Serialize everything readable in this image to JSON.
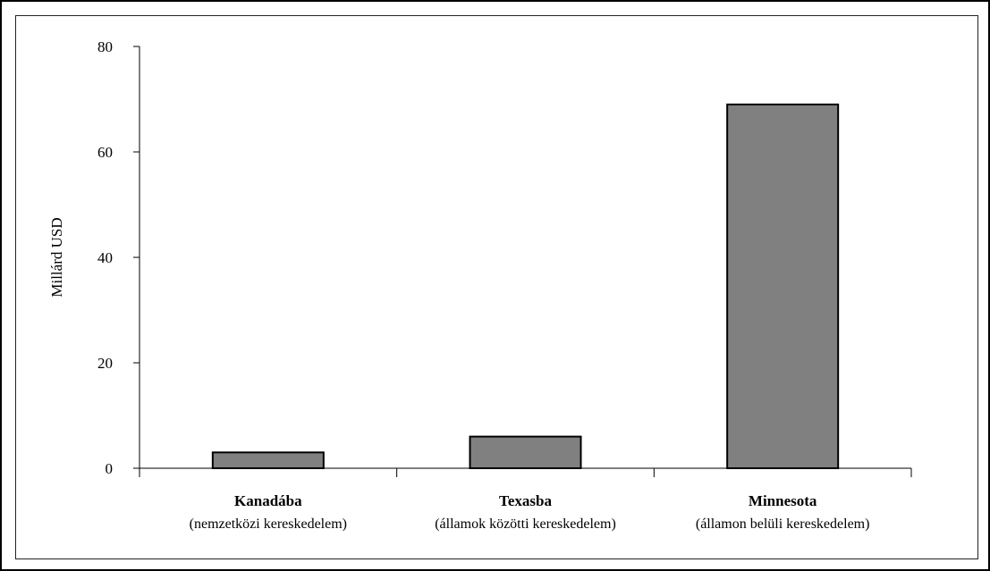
{
  "chart_data": {
    "type": "bar",
    "categories": [
      "Kanadába",
      "Texasba",
      "Minnesota"
    ],
    "category_sublabels": [
      "(nemzetközi kereskedelem)",
      "(államok közötti kereskedelem)",
      "(államon belüli kereskedelem)"
    ],
    "values": [
      3,
      6,
      69
    ],
    "title": "",
    "xlabel": "",
    "ylabel": "Millárd USD",
    "ylim": [
      0,
      80
    ],
    "yticks": [
      "0",
      "20",
      "40",
      "60",
      "80"
    ],
    "grid": false,
    "bar_color": "#808080",
    "bar_edge_color": "#000000"
  }
}
